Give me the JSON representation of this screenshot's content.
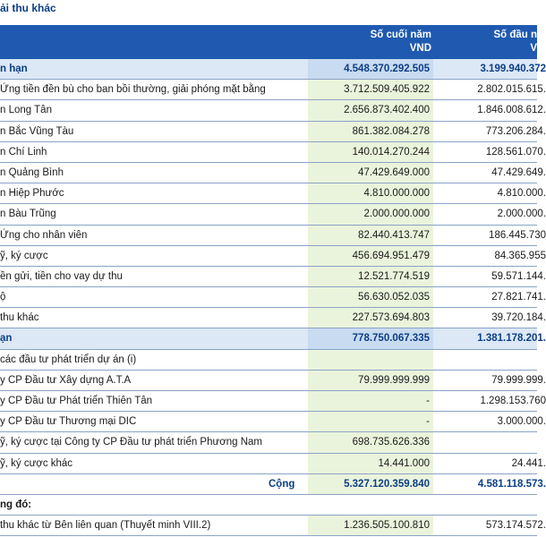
{
  "title": "ải thu khác",
  "header": {
    "col1": [
      "Số cuối năm",
      "VND"
    ],
    "col2": [
      "Số đầu n",
      "V"
    ]
  },
  "rows": [
    {
      "type": "section",
      "label": "n hạn",
      "v1": "4.548.370.292.505",
      "v2": "3.199.940.372"
    },
    {
      "type": "item",
      "label": "Ứng tiền đền bù cho ban bồi thường, giải phóng mặt bằng",
      "v1": "3.712.509.405.922",
      "v2": "2.802.015.615."
    },
    {
      "type": "item",
      "label": "n Long Tân",
      "v1": "2.656.873.402.400",
      "v2": "1.846.008.612."
    },
    {
      "type": "item",
      "label": "n Bắc Vũng Tàu",
      "v1": "861.382.084.278",
      "v2": "773.206.284."
    },
    {
      "type": "item",
      "label": "n Chí Linh",
      "v1": "140.014.270.244",
      "v2": "128.561.070."
    },
    {
      "type": "item",
      "label": "n Quảng Bình",
      "v1": "47.429.649.000",
      "v2": "47.429.649."
    },
    {
      "type": "item",
      "label": "n Hiệp Phước",
      "v1": "4.810.000.000",
      "v2": "4.810.000."
    },
    {
      "type": "item",
      "label": "n Bàu Trũng",
      "v1": "2.000.000.000",
      "v2": "2.000.000."
    },
    {
      "type": "item",
      "label": "Ứng cho nhân viên",
      "v1": "82.440.413.747",
      "v2": "186.445.730"
    },
    {
      "type": "item",
      "label": "ỹ, ký cược",
      "v1": "456.694.951.479",
      "v2": "84.365.955"
    },
    {
      "type": "item",
      "label": "ền gửi, tiền cho vay dự thu",
      "v1": "12.521.774.519",
      "v2": "59.571.144."
    },
    {
      "type": "item",
      "label": "ộ",
      "v1": "56.630.052.035",
      "v2": "27.821.741."
    },
    {
      "type": "item",
      "label": " thu khác",
      "v1": "227.573.694.803",
      "v2": "39.720.184."
    },
    {
      "type": "section",
      "label": "ạn",
      "v1": "778.750.067.335",
      "v2": "1.381.178.201."
    },
    {
      "type": "item",
      "label": "các đầu tư phát triển dự án (i)",
      "v1": "",
      "v2": ""
    },
    {
      "type": "item",
      "label": "y CP Đầu tư Xây dựng A.T.A",
      "v1": "79.999.999.999",
      "v2": "79.999.999."
    },
    {
      "type": "item",
      "label": "y CP Đầu tư Phát triển Thiên Tân",
      "v1": "-",
      "v2": "1.298.153.760"
    },
    {
      "type": "item",
      "label": "y CP Đầu tư Thương mại DIC",
      "v1": "-",
      "v2": "3.000.000."
    },
    {
      "type": "item",
      "label": "ỹ, ký cược tại Công ty CP Đầu tư phát triển Phương Nam",
      "v1": "698.735.626.336",
      "v2": ""
    },
    {
      "type": "item",
      "label": "ỹ, ký cược khác",
      "v1": "14.441.000",
      "v2": "24.441."
    },
    {
      "type": "total",
      "label": "Cộng",
      "v1": "5.327.120.359.840",
      "v2": "4.581.118.573."
    },
    {
      "type": "note",
      "label": "ng đó:",
      "v1": "",
      "v2": ""
    },
    {
      "type": "item",
      "label": " thu khác từ Bên liên quan (Thuyết minh VIII.2)",
      "v1": "1.236.505.100.810",
      "v2": "573.174.572."
    }
  ]
}
